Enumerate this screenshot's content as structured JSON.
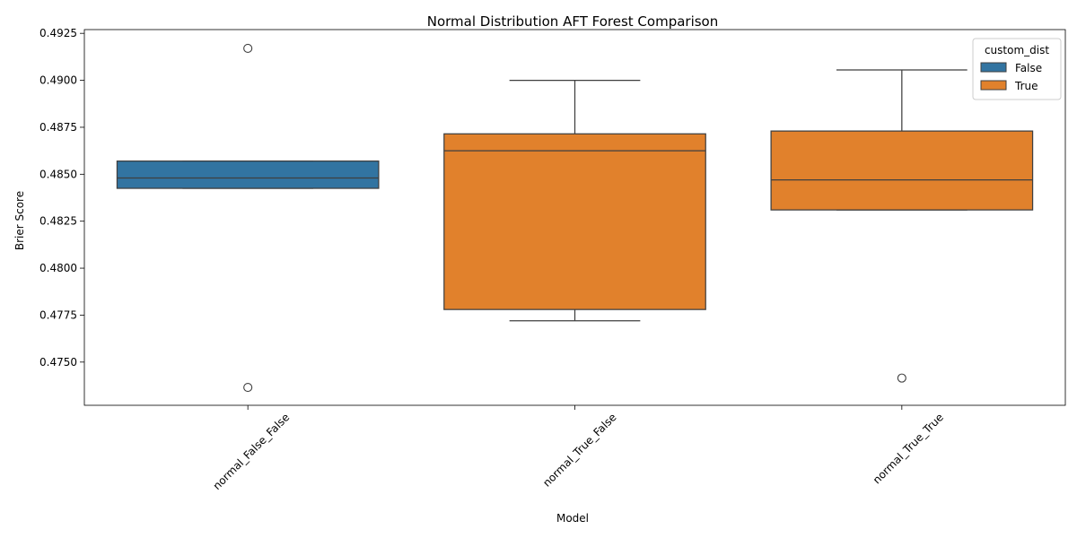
{
  "chart_data": {
    "type": "box",
    "title": "Normal Distribution AFT Forest Comparison",
    "xlabel": "Model",
    "ylabel": "Brier Score",
    "categories": [
      "normal_False_False",
      "normal_True_False",
      "normal_True_True"
    ],
    "ylim": [
      0.4727,
      0.4927
    ],
    "yticks": [
      "0.4750",
      "0.4775",
      "0.4800",
      "0.4825",
      "0.4850",
      "0.4875",
      "0.4900",
      "0.4925"
    ],
    "legend": {
      "title": "custom_dist",
      "placement": "top-right",
      "entries": [
        {
          "label": "False",
          "color": "#3274a1"
        },
        {
          "label": "True",
          "color": "#e1812c"
        }
      ]
    },
    "boxes": [
      {
        "category": "normal_False_False",
        "hue": "False",
        "color": "#3274a1",
        "whisker_low": 0.48425,
        "q1": 0.48425,
        "median": 0.4848,
        "q3": 0.4857,
        "whisker_high": 0.4857,
        "outliers": [
          0.4917,
          0.47365
        ]
      },
      {
        "category": "normal_True_False",
        "hue": "True",
        "color": "#e1812c",
        "whisker_low": 0.4772,
        "q1": 0.4778,
        "median": 0.48625,
        "q3": 0.48715,
        "whisker_high": 0.49,
        "outliers": []
      },
      {
        "category": "normal_True_True",
        "hue": "True",
        "color": "#e1812c",
        "whisker_low": 0.4831,
        "q1": 0.4831,
        "median": 0.4847,
        "q3": 0.4873,
        "whisker_high": 0.49055,
        "outliers": [
          0.47415
        ]
      }
    ]
  }
}
